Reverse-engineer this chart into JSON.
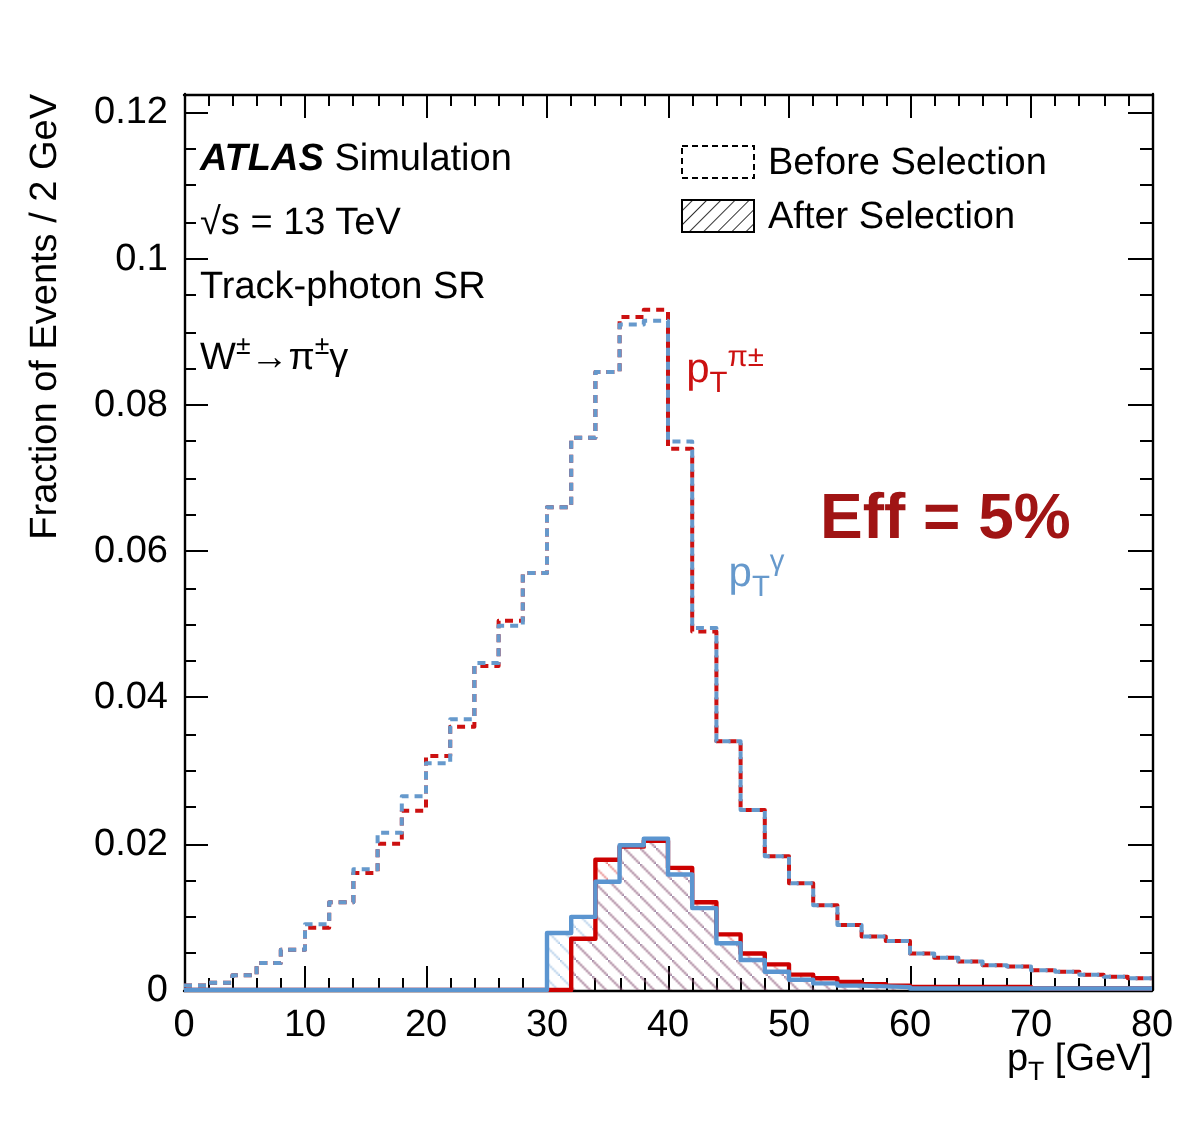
{
  "chart_data": {
    "type": "histogram",
    "xlabel": "p$_{T}$ [GeV]",
    "ylabel": "Fraction of Events / 2 GeV",
    "annotations": [
      "ATLAS Simulation",
      "√s = 13 TeV",
      "Track-photon SR",
      "W$^{±}$→π$^{±}$γ",
      "Before Selection",
      "After Selection",
      "Eff = 5%"
    ],
    "bins": [
      0,
      2,
      4,
      6,
      8,
      10,
      12,
      14,
      16,
      18,
      20,
      22,
      24,
      26,
      28,
      30,
      32,
      34,
      36,
      38,
      40,
      42,
      44,
      46,
      48,
      50,
      52,
      54,
      56,
      58,
      60,
      62,
      64,
      66,
      68,
      70,
      72,
      74,
      76,
      78,
      80
    ],
    "series": [
      {
        "name": "p$_{T}$$^{π±}$",
        "color": "#cc1111",
        "line_style": "dashed",
        "values": [
          0.0006,
          0.001,
          0.002,
          0.0037,
          0.0055,
          0.0085,
          0.012,
          0.016,
          0.02,
          0.0245,
          0.032,
          0.036,
          0.0443,
          0.0505,
          0.057,
          0.066,
          0.0755,
          0.0845,
          0.092,
          0.093,
          0.074,
          0.049,
          0.034,
          0.0246,
          0.0183,
          0.0146,
          0.0116,
          0.0089,
          0.0073,
          0.0067,
          0.005,
          0.0044,
          0.0039,
          0.0034,
          0.0032,
          0.0027,
          0.0025,
          0.0021,
          0.0018,
          0.0016
        ]
      },
      {
        "name": "p$_{T}$$^{γ}$",
        "color": "#6699cc",
        "line_style": "dashed",
        "values": [
          0.0006,
          0.001,
          0.002,
          0.0037,
          0.0055,
          0.009,
          0.012,
          0.0165,
          0.0215,
          0.0265,
          0.031,
          0.037,
          0.0447,
          0.0498,
          0.057,
          0.066,
          0.0755,
          0.0845,
          0.091,
          0.0915,
          0.075,
          0.0495,
          0.034,
          0.0246,
          0.0183,
          0.0146,
          0.0116,
          0.0089,
          0.0073,
          0.0067,
          0.005,
          0.0044,
          0.0039,
          0.0034,
          0.0032,
          0.0027,
          0.0025,
          0.0021,
          0.0018,
          0.0016
        ]
      },
      {
        "color": "#cc0000",
        "line_style": "solid",
        "values": [
          0,
          0,
          0,
          0,
          0,
          0,
          0,
          0,
          0,
          0,
          0,
          0,
          0,
          0,
          0,
          0,
          0.007,
          0.0178,
          0.0196,
          0.0204,
          0.0167,
          0.012,
          0.0076,
          0.005,
          0.0035,
          0.0021,
          0.0016,
          0.0011,
          0.0008,
          0.0006,
          0.0004,
          0.0004,
          0.0004,
          0.0004,
          0.0004,
          0.0002,
          0.0002,
          0.0002,
          0.0002,
          0.0002
        ]
      },
      {
        "color": "#5b95d0",
        "line_style": "solid",
        "values": [
          0,
          0,
          0,
          0,
          0,
          0,
          0,
          0,
          0,
          0,
          0,
          0,
          0,
          0,
          0,
          0.0078,
          0.01,
          0.0148,
          0.0198,
          0.0207,
          0.0158,
          0.0112,
          0.0064,
          0.0041,
          0.0025,
          0.0014,
          0.0009,
          0.0006,
          0.0005,
          0.0004,
          0.0002,
          0.0002,
          0.0002,
          0.0002,
          0.0002,
          0.0002,
          0.0002,
          0.0002,
          0.0002,
          0.0002
        ]
      }
    ],
    "xlim": [
      0,
      80
    ],
    "xticks": [
      0,
      10,
      20,
      30,
      40,
      50,
      60,
      70,
      80
    ],
    "ylim": [
      0,
      0.1225
    ],
    "yticks": [
      0,
      0.02,
      0.04,
      0.06,
      0.08,
      0.1,
      0.12
    ],
    "legend": "top right",
    "grid": false
  }
}
